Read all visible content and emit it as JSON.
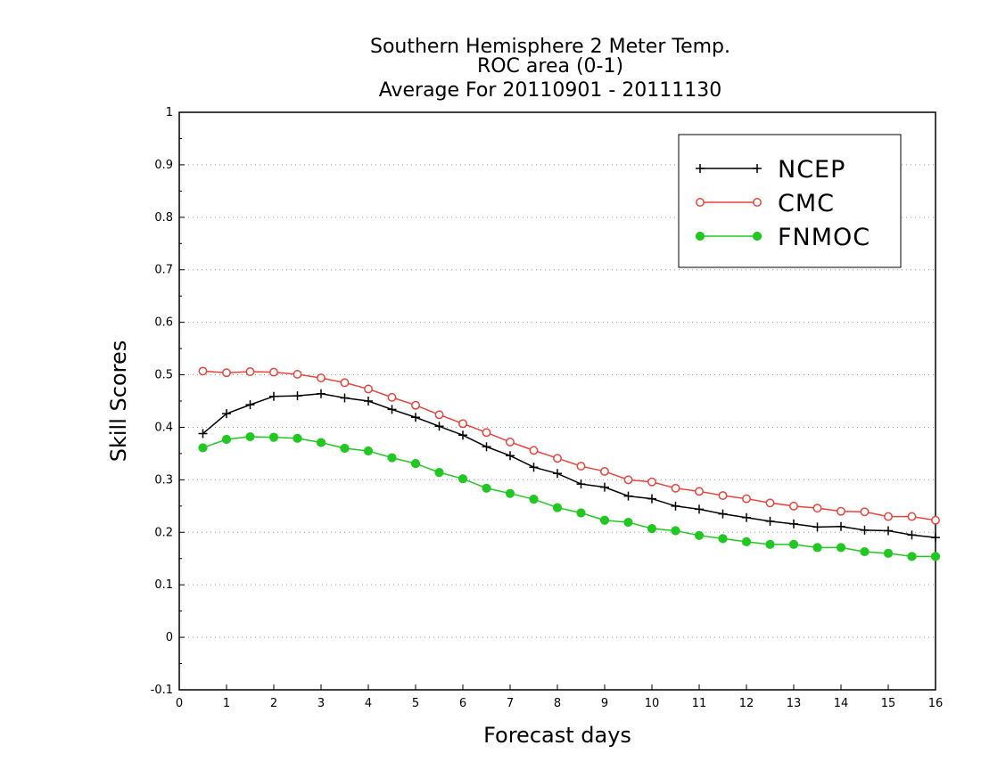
{
  "title_lines": [
    "Southern Hemisphere 2 Meter Temp.",
    "ROC area (0-1)",
    "Average For 20110901 - 20111130"
  ],
  "chart_data": {
    "type": "line",
    "title": "Southern Hemisphere 2 Meter Temp. ROC area (0-1) Average For 20110901 - 20111130",
    "xlabel": "Forecast days",
    "ylabel": "Skill Scores",
    "xlim": [
      0,
      16
    ],
    "ylim": [
      -0.1,
      1
    ],
    "xticks": [
      "0",
      "1",
      "2",
      "3",
      "4",
      "5",
      "6",
      "7",
      "8",
      "9",
      "10",
      "11",
      "12",
      "13",
      "14",
      "15",
      "16"
    ],
    "yticks": [
      "-0.1",
      "0",
      "0.1",
      "0.2",
      "0.3",
      "0.4",
      "0.5",
      "0.6",
      "0.7",
      "0.8",
      "0.9",
      "1"
    ],
    "grid": true,
    "legend_position": "top-right",
    "x": [
      0.5,
      1,
      1.5,
      2,
      2.5,
      3,
      3.5,
      4,
      4.5,
      5,
      5.5,
      6,
      6.5,
      7,
      7.5,
      8,
      8.5,
      9,
      9.5,
      10,
      10.5,
      11,
      11.5,
      12,
      12.5,
      13,
      13.5,
      14,
      14.5,
      15,
      15.5,
      16
    ],
    "series": [
      {
        "name": "NCEP",
        "color": "#000000",
        "marker": "plus",
        "values": [
          0.388,
          0.426,
          0.443,
          0.459,
          0.46,
          0.464,
          0.456,
          0.45,
          0.434,
          0.419,
          0.402,
          0.385,
          0.363,
          0.346,
          0.324,
          0.312,
          0.292,
          0.286,
          0.269,
          0.264,
          0.25,
          0.244,
          0.235,
          0.228,
          0.221,
          0.216,
          0.21,
          0.211,
          0.204,
          0.203,
          0.195,
          0.19
        ]
      },
      {
        "name": "CMC",
        "color": "#e8443c",
        "marker": "open-circle",
        "values": [
          0.507,
          0.504,
          0.506,
          0.505,
          0.501,
          0.494,
          0.485,
          0.473,
          0.457,
          0.442,
          0.424,
          0.407,
          0.39,
          0.372,
          0.356,
          0.341,
          0.326,
          0.316,
          0.3,
          0.296,
          0.284,
          0.278,
          0.27,
          0.264,
          0.256,
          0.25,
          0.246,
          0.24,
          0.239,
          0.23,
          0.23,
          0.223
        ]
      },
      {
        "name": "FNMOC",
        "color": "#22c822",
        "marker": "filled-circle",
        "values": [
          0.361,
          0.377,
          0.382,
          0.381,
          0.379,
          0.371,
          0.36,
          0.355,
          0.342,
          0.331,
          0.314,
          0.302,
          0.284,
          0.274,
          0.263,
          0.247,
          0.237,
          0.223,
          0.219,
          0.207,
          0.203,
          0.194,
          0.188,
          0.182,
          0.177,
          0.177,
          0.171,
          0.171,
          0.163,
          0.16,
          0.154,
          0.154
        ]
      }
    ]
  }
}
